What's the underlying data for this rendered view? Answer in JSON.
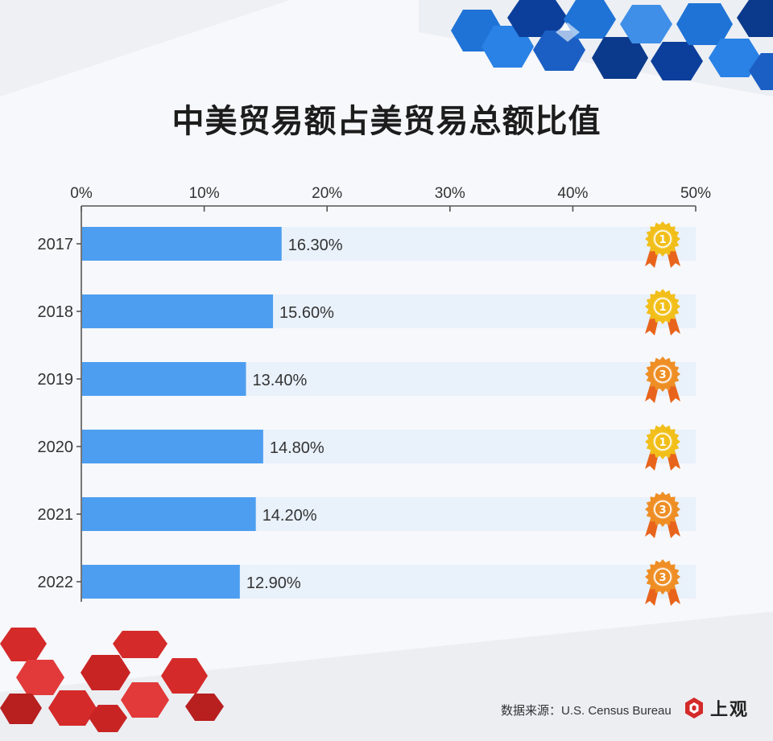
{
  "title": "中美贸易额占美贸易总额比值",
  "source_text": "数据来源：U.S. Census Bureau",
  "logo_text": "上观",
  "colors": {
    "bar": "#4d9ef0",
    "track": "#e9f1fb",
    "axis": "#555555",
    "gold": "#f2bf1a",
    "bronze": "#ee8e25",
    "ribbon": "#e8641c"
  },
  "chart_data": {
    "type": "bar",
    "orientation": "horizontal",
    "title": "中美贸易额占美贸易总额比值",
    "xlabel": "",
    "ylabel": "",
    "xlim": [
      0,
      50
    ],
    "ticks": [
      "0%",
      "10%",
      "20%",
      "30%",
      "40%",
      "50%"
    ],
    "categories": [
      "2017",
      "2018",
      "2019",
      "2020",
      "2021",
      "2022"
    ],
    "values": [
      16.3,
      15.6,
      13.4,
      14.8,
      14.2,
      12.9
    ],
    "value_labels": [
      "16.30%",
      "15.60%",
      "13.40%",
      "14.80%",
      "14.20%",
      "12.90%"
    ],
    "medals": [
      {
        "kind": "gold",
        "label": "1"
      },
      {
        "kind": "gold",
        "label": "1"
      },
      {
        "kind": "bronze",
        "label": "3"
      },
      {
        "kind": "gold",
        "label": "1"
      },
      {
        "kind": "bronze",
        "label": "3"
      },
      {
        "kind": "bronze",
        "label": "3"
      }
    ]
  }
}
